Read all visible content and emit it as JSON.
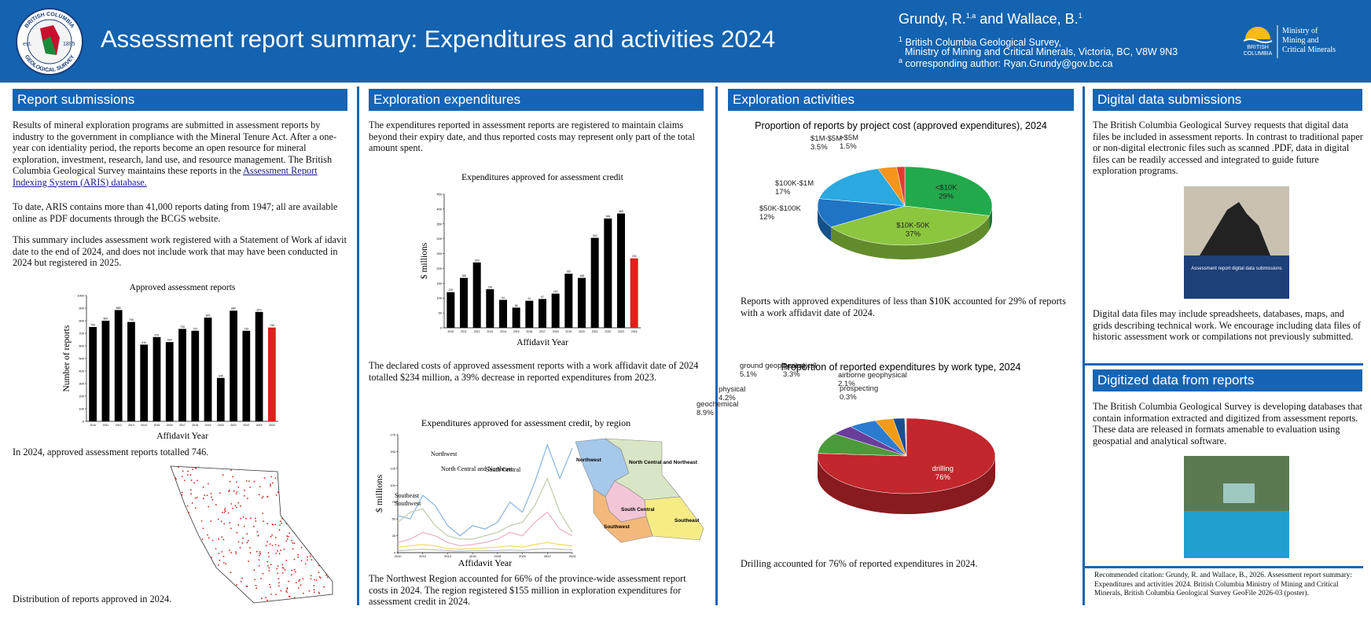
{
  "header": {
    "title": "Assessment report summary: Expenditures and activities 2024",
    "logo_top": "BRITISH COLUMBIA",
    "logo_bottom": "GEOLOGICAL SURVEY",
    "logo_est": "est.",
    "logo_year": "1895",
    "author1": "Grundy, R.",
    "author1_sup": "1,a",
    "author2": "and Wallace, B.",
    "author2_sup": "1",
    "affiliation_mark": "1",
    "affiliation": [
      "British Columbia Geological Survey,",
      "Ministry of Mining and Critical Minerals, Victoria, BC, V8W 9N3"
    ],
    "corresponding_mark": "a",
    "corresponding": "corresponding author: Ryan.Grundy@gov.bc.ca",
    "bc_logo": [
      "BRITISH",
      "COLUMBIA"
    ],
    "ministry": [
      "Ministry of",
      "Mining and",
      "Critical Minerals"
    ]
  },
  "sections": {
    "report_submissions": {
      "heading": "Report submissions",
      "p1": "Results of mineral exploration programs are submitted in assessment reports by industry to the government in compliance with the Mineral Tenure Act. After a one-year con identiality period, the reports become an open resource for mineral exploration, investment, research, land use, and resource management. The British Columbia Geological Survey maintains these reports in the",
      "link": "Assessment Report Indexing System (ARIS) database.",
      "p2": "To date, ARIS contains more than 41,000 reports dating from 1947; all are available online as PDF documents through the BCGS website.",
      "p3": "This summary includes assessment work registered with a Statement of Work af idavit date to the end of 2024, and does not include work that may have been conducted in 2024 but registered in 2025.",
      "caption1": "In 2024, approved assessment reports totalled 746.",
      "caption2": "Distribution of reports approved in 2024."
    },
    "exploration_expenditures": {
      "heading": "Exploration expenditures",
      "p1": "The expenditures reported in assessment reports are registered to maintain claims beyond their expiry date, and thus reported costs may represent only part of the total amount spent.",
      "p2": "The declared costs of approved assessment reports with a work affidavit date of 2024 totalled $234 million, a 39% decrease in reported expenditures from 2023.",
      "p3": "The Northwest Region accounted for 66% of the province-wide assessment report costs in 2024. The region registered $155 million in exploration expenditures for assessment credit in 2024."
    },
    "exploration_activities": {
      "heading": "Exploration activities",
      "p1": "Reports with approved expenditures of less than $10K accounted for 29% of reports with a work affidavit date of 2024.",
      "p2": "Drilling accounted for 76% of reported expenditures in 2024."
    },
    "digital_data": {
      "heading": "Digital data submissions",
      "p1": "The British Columbia Geological Survey requests that digital data files be included in assessment reports. In contrast to traditional paper or non-digital electronic files such as scanned .PDF, data in digital files can be readily accessed and integrated to guide future exploration programs.",
      "cover": "Assessment report digital data submissions",
      "p2": "Digital data files may include spreadsheets, databases, maps, and grids describing technical work. We encourage including data files of historic assessment work or compilations not previously submitted."
    },
    "digitized_data": {
      "heading": "Digitized data from reports",
      "p1": "The British Columbia Geological Survey is developing databases that contain information extracted and digitized from assessment reports. These data are released in formats amenable to evaluation using geospatial and analytical software."
    },
    "citation": "Recommended citation: Grundy, R. and Wallace, B., 2026. Assessment report summary: Expenditures and activities 2024. British Columbia Ministry of Mining and Critical Minerals, British Columbia Geological Survey GeoFile 2026-03 (poster)."
  },
  "chart_data": [
    {
      "type": "bar",
      "title": "Approved assessment reports",
      "y_label": "Number of reports",
      "x_label": "Affidavit Year",
      "categories": [
        "2010",
        "2011",
        "2012",
        "2013",
        "2014",
        "2015",
        "2016",
        "2017",
        "2018",
        "2019",
        "2020",
        "2021",
        "2022",
        "2023",
        "2024"
      ],
      "values": [
        750,
        800,
        885,
        790,
        610,
        670,
        630,
        735,
        720,
        825,
        345,
        880,
        720,
        870,
        746
      ],
      "colors": [
        "#000000",
        "#000000",
        "#000000",
        "#000000",
        "#000000",
        "#000000",
        "#000000",
        "#000000",
        "#000000",
        "#000000",
        "#000000",
        "#000000",
        "#000000",
        "#000000",
        "#e0201b"
      ],
      "ylim": [
        0,
        1000
      ],
      "yticks": [
        0,
        100,
        200,
        300,
        400,
        500,
        600,
        700,
        800,
        900,
        1000
      ]
    },
    {
      "type": "bar",
      "title": "Expenditures approved for assessment credit",
      "y_label": "$ millions",
      "x_label": "Affidavit Year",
      "categories": [
        "2010",
        "2011",
        "2012",
        "2013",
        "2014",
        "2015",
        "2016",
        "2017",
        "2018",
        "2019",
        "2020",
        "2021",
        "2022",
        "2023",
        "2024"
      ],
      "values": [
        120,
        168,
        220,
        130,
        94,
        68,
        91,
        97,
        115,
        182,
        168,
        303,
        368,
        385,
        234
      ],
      "colors": [
        "#000000",
        "#000000",
        "#000000",
        "#000000",
        "#000000",
        "#000000",
        "#000000",
        "#000000",
        "#000000",
        "#000000",
        "#000000",
        "#000000",
        "#000000",
        "#000000",
        "#e0201b"
      ],
      "ylim": [
        0,
        450
      ],
      "yticks": [
        0,
        50,
        100,
        150,
        200,
        250,
        300,
        350,
        400,
        450
      ]
    },
    {
      "type": "line",
      "title": "Expenditures approved for assessment credit, by region",
      "y_label": "$ millions",
      "x_label": "Affidavit Year",
      "x": [
        2010,
        2011,
        2012,
        2013,
        2014,
        2015,
        2016,
        2017,
        2018,
        2019,
        2020,
        2021,
        2022,
        2023,
        2024
      ],
      "xlim": [
        2010,
        2024
      ],
      "xticks": [
        2010,
        2012,
        2014,
        2016,
        2018,
        2020,
        2022,
        2024
      ],
      "ylim": [
        0,
        175
      ],
      "yticks": [
        0,
        25,
        50,
        75,
        100,
        125,
        150,
        175
      ],
      "series": [
        {
          "name": "Northwest",
          "color": "#8fb8e0",
          "values": [
            55,
            50,
            85,
            70,
            40,
            25,
            40,
            35,
            45,
            75,
            60,
            105,
            160,
            110,
            155
          ]
        },
        {
          "name": "North Central and Northeast",
          "color": "#c2cfb2",
          "values": [
            45,
            60,
            65,
            40,
            25,
            20,
            20,
            25,
            30,
            40,
            45,
            70,
            110,
            60,
            30
          ]
        },
        {
          "name": "South Central",
          "color": "#f0b4c4",
          "values": [
            15,
            20,
            30,
            25,
            15,
            10,
            12,
            15,
            20,
            30,
            25,
            45,
            60,
            35,
            25
          ]
        },
        {
          "name": "Southeast",
          "color": "#f2dc6a",
          "values": [
            8,
            10,
            12,
            10,
            6,
            5,
            6,
            7,
            8,
            10,
            8,
            12,
            15,
            12,
            10
          ]
        },
        {
          "name": "Southwest",
          "color": "#c4c4c4",
          "values": [
            3,
            4,
            5,
            4,
            3,
            2,
            3,
            3,
            3,
            4,
            3,
            5,
            6,
            5,
            4
          ]
        }
      ]
    },
    {
      "type": "pie",
      "title": "Proportion of reports by project cost (approved expenditures), 2024",
      "categories": [
        "<$10K",
        "$10K-50K",
        "$50K-$100K",
        "$100K-$1M",
        "$1M-$5M",
        ">$5M"
      ],
      "values": [
        29,
        37,
        12,
        17,
        3.5,
        1.5
      ],
      "value_labels": [
        "29%",
        "37%",
        "12%",
        "17%",
        "3.5%",
        "1.5%"
      ],
      "colors": [
        "#22a94b",
        "#8cc63f",
        "#1f74c4",
        "#2aa8e0",
        "#f7941d",
        "#e03c31"
      ]
    },
    {
      "type": "pie",
      "title": "Proportion of reported expenditures by work type, 2024",
      "categories": [
        "drilling",
        "geochemical",
        "physical",
        "ground geophysical",
        "geological",
        "airborne geophysical",
        "prospecting"
      ],
      "values": [
        76,
        8.9,
        4.2,
        5.1,
        3.3,
        2.1,
        0.3
      ],
      "value_labels": [
        "76%",
        "8.9%",
        "4.2%",
        "5.1%",
        "3.3%",
        "2.1%",
        "0.3%"
      ],
      "colors": [
        "#c1272d",
        "#4c9a3a",
        "#6a3d9a",
        "#2b7bd0",
        "#f39c12",
        "#1a4f8f",
        "#dcdcdc"
      ]
    }
  ]
}
